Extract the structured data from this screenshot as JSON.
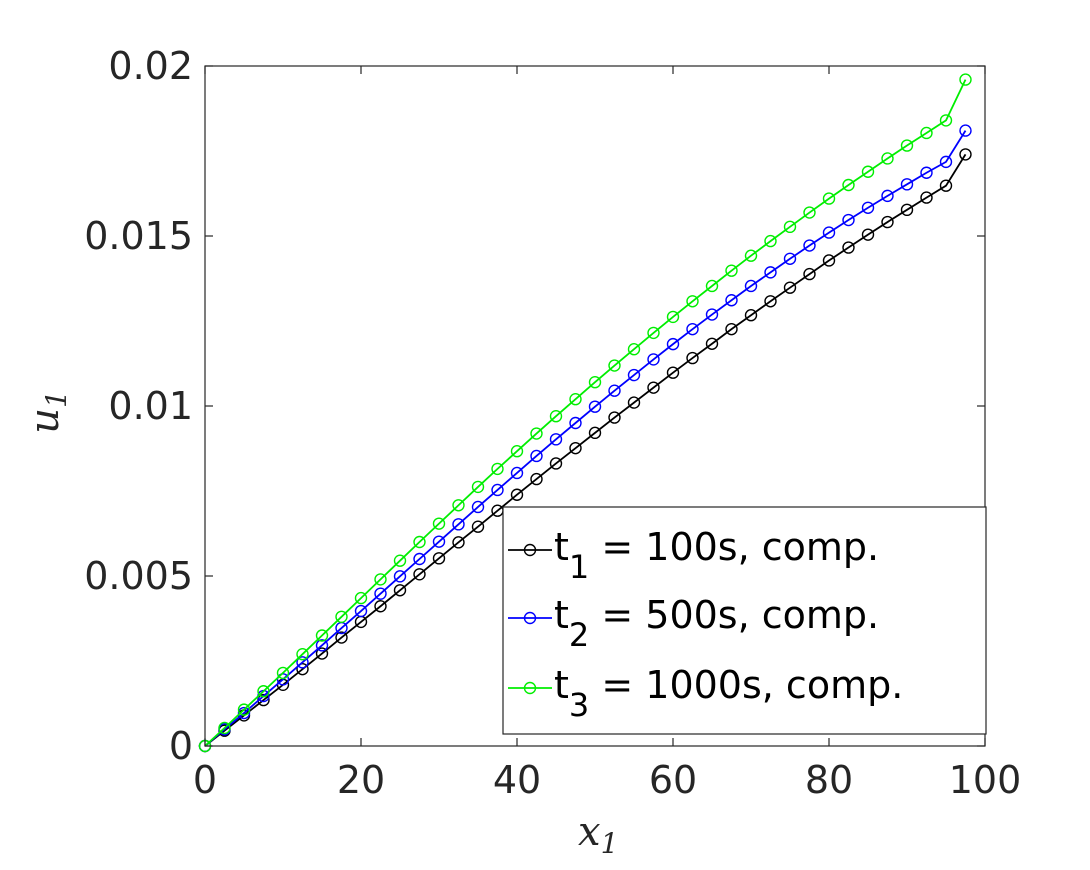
{
  "chart_data": {
    "type": "line",
    "title": "",
    "xlabel": "x",
    "xlabel_sub": "1",
    "ylabel": "u",
    "ylabel_sub": "1",
    "xlim": [
      0,
      100
    ],
    "ylim": [
      0,
      0.02
    ],
    "xticks": [
      0,
      20,
      40,
      60,
      80,
      100
    ],
    "xtick_labels": [
      "0",
      "20",
      "40",
      "60",
      "80",
      "100"
    ],
    "yticks": [
      0,
      0.005,
      0.01,
      0.015,
      0.02
    ],
    "ytick_labels": [
      "0",
      "0.005",
      "0.01",
      "0.015",
      "0.02"
    ],
    "grid": false,
    "legend_position": "bottom-right",
    "x": [
      0,
      2.5,
      5,
      7.5,
      10,
      12.5,
      15,
      17.5,
      20,
      22.5,
      25,
      27.5,
      30,
      32.5,
      35,
      37.5,
      40,
      42.5,
      45,
      47.5,
      50,
      52.5,
      55,
      57.5,
      60,
      62.5,
      65,
      67.5,
      70,
      72.5,
      75,
      77.5,
      80,
      82.5,
      85,
      87.5,
      90,
      92.5,
      95,
      97.5
    ],
    "series": [
      {
        "legend_main": "t",
        "legend_sub": "1",
        "legend_rest": " = 100s, comp.",
        "color": "#000000",
        "values": [
          0,
          0.00045,
          0.0009,
          0.00135,
          0.0018,
          0.00226,
          0.00272,
          0.00319,
          0.00365,
          0.00411,
          0.00458,
          0.00505,
          0.00552,
          0.00599,
          0.00645,
          0.00692,
          0.00739,
          0.00785,
          0.00831,
          0.00876,
          0.00921,
          0.00966,
          0.0101,
          0.01054,
          0.01098,
          0.01141,
          0.01183,
          0.01226,
          0.01267,
          0.01308,
          0.01348,
          0.01388,
          0.01428,
          0.01466,
          0.01504,
          0.01541,
          0.01577,
          0.01613,
          0.01648,
          0.0174
        ]
      },
      {
        "legend_main": "t",
        "legend_sub": "2",
        "legend_rest": " = 500s, comp.",
        "color": "#0000ff",
        "values": [
          0,
          0.00049,
          0.00097,
          0.00147,
          0.00196,
          0.00246,
          0.00296,
          0.00347,
          0.00397,
          0.00448,
          0.00499,
          0.0055,
          0.00601,
          0.00652,
          0.00703,
          0.00753,
          0.00803,
          0.00853,
          0.00902,
          0.0095,
          0.00998,
          0.01045,
          0.01091,
          0.01137,
          0.01182,
          0.01226,
          0.01269,
          0.01311,
          0.01353,
          0.01393,
          0.01433,
          0.01472,
          0.0151,
          0.01547,
          0.01583,
          0.01618,
          0.01652,
          0.01686,
          0.01718,
          0.0181
        ]
      },
      {
        "legend_main": "t",
        "legend_sub": "3",
        "legend_rest": " = 1000s, comp.",
        "color": "#00ee00",
        "values": [
          0,
          0.00053,
          0.00107,
          0.00161,
          0.00215,
          0.0027,
          0.00325,
          0.0038,
          0.00435,
          0.0049,
          0.00545,
          0.006,
          0.00654,
          0.00708,
          0.00762,
          0.00815,
          0.00867,
          0.00919,
          0.0097,
          0.0102,
          0.0107,
          0.01119,
          0.01167,
          0.01215,
          0.01262,
          0.01308,
          0.01353,
          0.01398,
          0.01442,
          0.01485,
          0.01527,
          0.01569,
          0.0161,
          0.0165,
          0.01689,
          0.01728,
          0.01766,
          0.01803,
          0.0184,
          0.0196
        ]
      }
    ]
  }
}
